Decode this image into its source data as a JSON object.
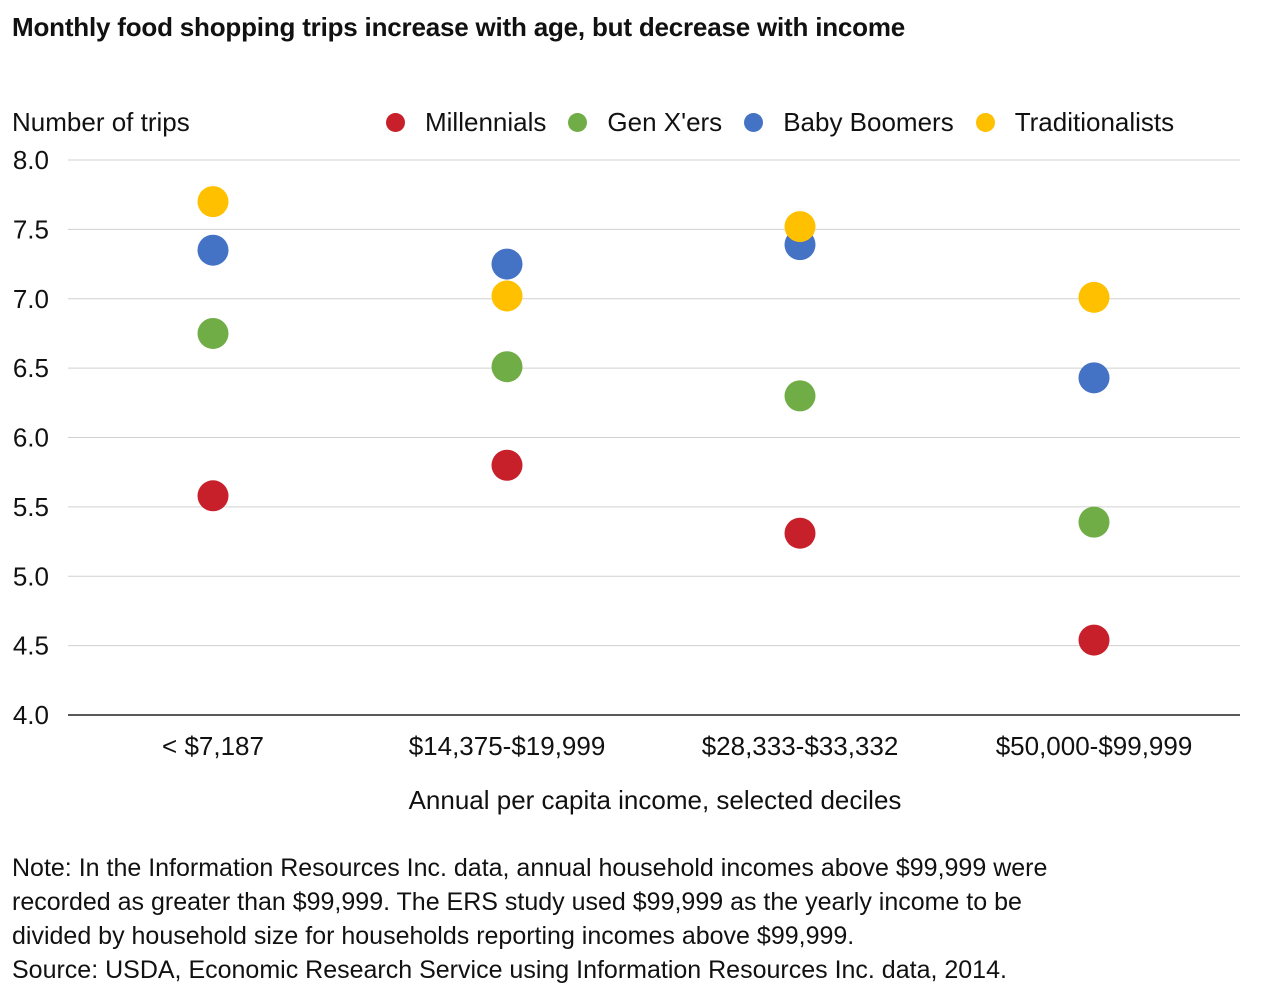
{
  "title": "Monthly food shopping trips increase with age, but decrease with income",
  "notes": [
    "Note: In the Information Resources Inc. data, annual household incomes above $99,999 were",
    "recorded as greater than $99,999. The ERS study used $99,999 as the yearly income to be",
    "divided by household size for households reporting incomes above $99,999.",
    "Source: USDA, Economic Research Service using Information Resources Inc. data, 2014."
  ],
  "chart_data": {
    "type": "scatter",
    "title": "Monthly food shopping trips increase with age, but decrease with income",
    "ylabel": "Number of trips",
    "xlabel": "Annual per capita income, selected deciles",
    "categories": [
      "< $7,187",
      "$14,375-$19,999",
      "$28,333-$33,332",
      "$50,000-$99,999"
    ],
    "ylim": [
      4.0,
      8.0
    ],
    "yticks": [
      "8.0",
      "7.5",
      "7.0",
      "6.5",
      "6.0",
      "5.5",
      "5.0",
      "4.5",
      "4.0"
    ],
    "grid": true,
    "legend_position": "top",
    "series": [
      {
        "name": "Millennials",
        "color": "#c8202b",
        "values": [
          5.58,
          5.8,
          5.31,
          4.54
        ]
      },
      {
        "name": "Gen X'ers",
        "color": "#70ad47",
        "values": [
          6.75,
          6.51,
          6.3,
          5.39
        ]
      },
      {
        "name": "Baby Boomers",
        "color": "#4472c4",
        "values": [
          7.35,
          7.25,
          7.39,
          6.43
        ]
      },
      {
        "name": "Traditionalists",
        "color": "#ffc000",
        "values": [
          7.7,
          7.02,
          7.52,
          7.01
        ]
      }
    ]
  }
}
